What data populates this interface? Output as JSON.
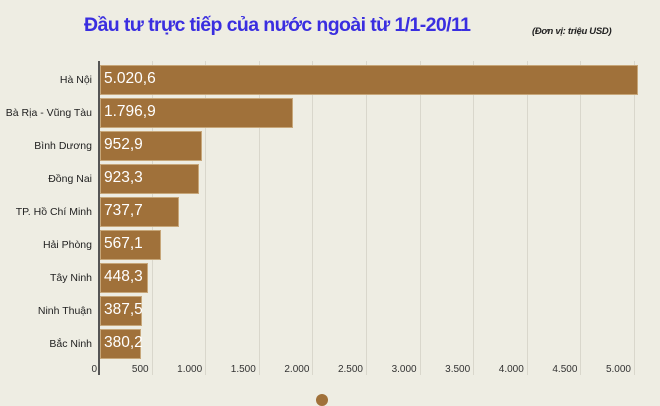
{
  "header": {
    "title": "Đầu tư trực tiếp của nước ngoài từ 1/1-20/11",
    "unit": "(Đơn vị: triệu USD)"
  },
  "colors": {
    "bar": "#a0713a",
    "title": "#3a2ee0",
    "background": "#eeede3"
  },
  "chart_data": {
    "type": "bar",
    "orientation": "horizontal",
    "title": "Đầu tư trực tiếp của nước ngoài từ 1/1-20/11",
    "subtitle": "(Đơn vị: triệu USD)",
    "xlabel": "",
    "ylabel": "",
    "xlim": [
      0,
      5000
    ],
    "grid": true,
    "categories": [
      "Hà Nội",
      "Bà Rịa - Vũng Tàu",
      "Bình Dương",
      "Đồng Nai",
      "TP. Hồ Chí Minh",
      "Hải Phòng",
      "Tây Ninh",
      "Ninh Thuận",
      "Bắc Ninh"
    ],
    "values": [
      5020.6,
      1796.9,
      952.9,
      923.3,
      737.7,
      567.1,
      448.3,
      387.5,
      380.2
    ],
    "value_labels": [
      "5.020,6",
      "1.796,9",
      "952,9",
      "923,3",
      "737,7",
      "567,1",
      "448,3",
      "387,5",
      "380,2"
    ],
    "x_ticks": [
      "0",
      "500",
      "1.000",
      "1.500",
      "2.000",
      "2.500",
      "3.000",
      "3.500",
      "4.000",
      "4.500",
      "5.000"
    ]
  }
}
